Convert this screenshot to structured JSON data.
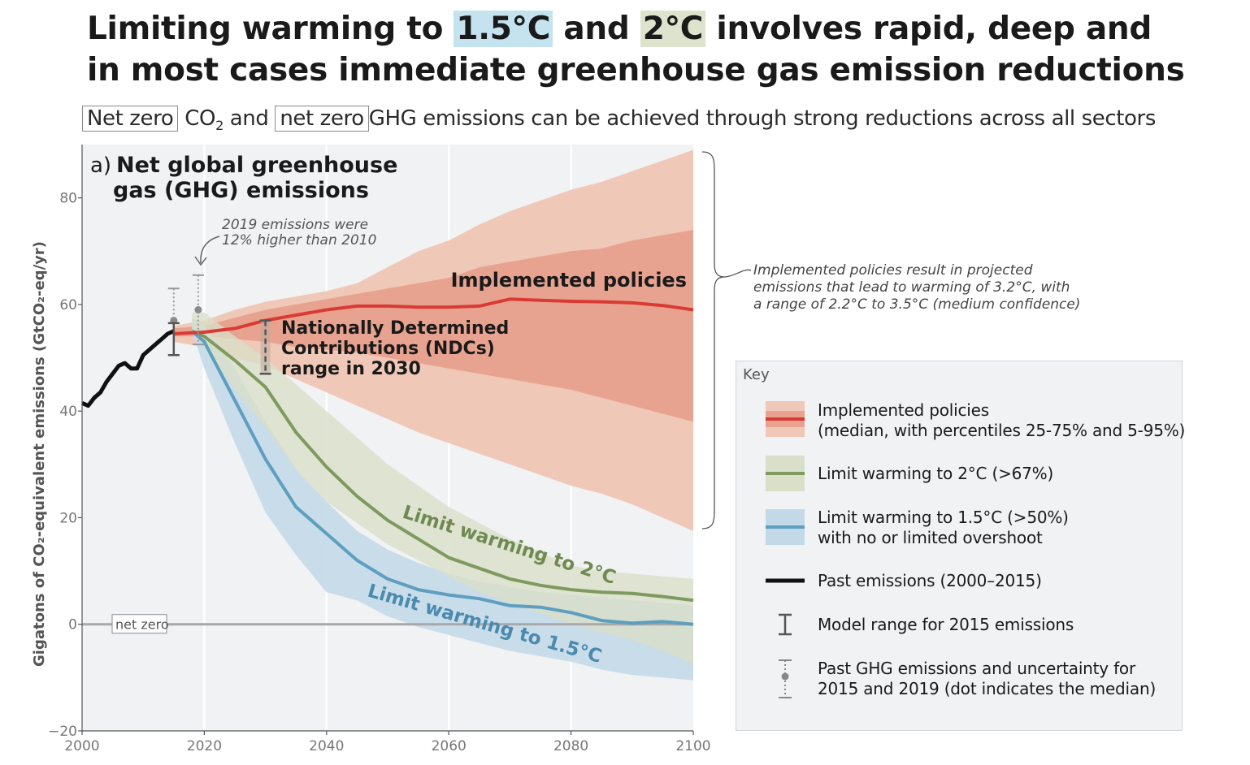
{
  "headline": {
    "part1": "Limiting warming to ",
    "highlight_15": "1.5°C",
    "part2": " and ",
    "highlight_2": "2°C",
    "part3": " involves rapid, deep and",
    "line2": "in most cases immediate greenhouse gas emission reductions"
  },
  "subheadline": {
    "netzero1": "Net zero",
    "co2": "CO",
    "co2_sub": "2",
    "and": "and",
    "netzero2": "net zero",
    "rest": "GHG emissions can be achieved through strong reductions across all sectors"
  },
  "colors": {
    "implemented_outer": "#f0c8b8",
    "implemented_inner": "#e8a390",
    "implemented_median": "#d93b34",
    "two_deg_band": "#d9dfc8",
    "two_deg_line": "#7e9a5e",
    "one_five_band": "#c3d9e8",
    "one_five_line": "#5e9ec0",
    "past": "#111111",
    "plot_bg": "#f0f2f3",
    "netzero_line": "#a8a8a8"
  },
  "chart_data": {
    "type": "area",
    "title_prefix": "a)",
    "title": "Net global greenhouse gas (GHG) emissions",
    "xlabel": "",
    "ylabel": "Gigatons of CO₂-equivalent emissions (GtCO₂-eq/yr)",
    "xlim": [
      2000,
      2100
    ],
    "ylim": [
      -20,
      90
    ],
    "x_ticks": [
      2000,
      2020,
      2040,
      2060,
      2080,
      2100
    ],
    "y_ticks": [
      -20,
      0,
      20,
      40,
      60,
      80
    ],
    "grid": "vertical",
    "netzero_label": "net zero",
    "past_emissions": {
      "name": "Past emissions (2000–2015)",
      "x": [
        2000,
        2001,
        2002,
        2003,
        2004,
        2005,
        2006,
        2007,
        2008,
        2009,
        2010,
        2011,
        2012,
        2013,
        2014,
        2015
      ],
      "y": [
        41.5,
        41,
        42.5,
        43.5,
        45.5,
        47,
        48.5,
        49,
        48,
        48,
        50.5,
        51.5,
        52.5,
        53.5,
        54.5,
        55
      ]
    },
    "implemented_policies": {
      "name": "Implemented policies",
      "x": [
        2015,
        2020,
        2025,
        2030,
        2035,
        2040,
        2045,
        2050,
        2055,
        2060,
        2065,
        2070,
        2075,
        2080,
        2085,
        2090,
        2095,
        2100
      ],
      "median": [
        54.5,
        54.8,
        55.5,
        57,
        58,
        59,
        59.7,
        59.7,
        59.5,
        59.5,
        59.7,
        61,
        60.8,
        60.6,
        60.5,
        60.3,
        59.8,
        59
      ],
      "p25": [
        54,
        54,
        53.5,
        53,
        52,
        51.5,
        51,
        50,
        49,
        48,
        47,
        46,
        45,
        44,
        42.5,
        41,
        39.5,
        38
      ],
      "p75": [
        55.5,
        56,
        57.5,
        59,
        60,
        61,
        62,
        63,
        64,
        65,
        67,
        68,
        69,
        70,
        70.5,
        72,
        73,
        74
      ],
      "p5": [
        53,
        52,
        50,
        48.5,
        46,
        43.5,
        41,
        38.5,
        36,
        34,
        32,
        30,
        28,
        26,
        24.5,
        22.5,
        20,
        17.5
      ],
      "p95": [
        56,
        57,
        59,
        60.5,
        61.5,
        62.5,
        64,
        67,
        70,
        72,
        75,
        77.5,
        79.5,
        81.5,
        83,
        85,
        87,
        89
      ]
    },
    "limit_2c": {
      "name": "Limit warming to 2°C",
      "x": [
        2018,
        2020,
        2025,
        2030,
        2035,
        2040,
        2045,
        2050,
        2055,
        2060,
        2065,
        2070,
        2075,
        2080,
        2085,
        2090,
        2095,
        2100
      ],
      "median": [
        55,
        54,
        49.5,
        44.5,
        36,
        29.5,
        24,
        19.5,
        16,
        12.5,
        10.5,
        8.5,
        7.3,
        6.5,
        6,
        5.8,
        5.2,
        4.5
      ],
      "upper": [
        58.5,
        58.5,
        54,
        50,
        45,
        40,
        35,
        30,
        26,
        22,
        19,
        16,
        13.5,
        11,
        10,
        9.5,
        9,
        8.5
      ],
      "lower": [
        55,
        52,
        44,
        37,
        29,
        23,
        19,
        15,
        12,
        9,
        6,
        4,
        2,
        0,
        -1.5,
        -3,
        -5,
        -7.5
      ]
    },
    "limit_15c": {
      "name": "Limit warming to 1.5°C",
      "x": [
        2018,
        2020,
        2025,
        2030,
        2035,
        2040,
        2045,
        2050,
        2055,
        2060,
        2065,
        2070,
        2075,
        2080,
        2085,
        2090,
        2095,
        2100
      ],
      "median": [
        55,
        53,
        42,
        31,
        22,
        17,
        12,
        8.5,
        6.5,
        5.5,
        4.8,
        3.5,
        3.2,
        2.2,
        0.7,
        0.2,
        0.5,
        0
      ],
      "upper": [
        57.5,
        56,
        48,
        38,
        29,
        23,
        17.5,
        14,
        11.5,
        9.5,
        8,
        7,
        6,
        5.5,
        5,
        4.5,
        4,
        3.5
      ],
      "lower": [
        55,
        48,
        34,
        21,
        13,
        6,
        4.5,
        1.5,
        -0.5,
        -2,
        -3.5,
        -5,
        -6,
        -7,
        -8.5,
        -9.5,
        -10,
        -10.5
      ]
    },
    "model_range_2015": {
      "x": 2015,
      "min": 50.5,
      "max": 56.5
    },
    "past_uncertainty": [
      {
        "x": 2015,
        "min": 50.5,
        "max": 63,
        "median": 57
      },
      {
        "x": 2019,
        "min": 52.5,
        "max": 65.5,
        "median": 59
      }
    ],
    "ndc_range_2030": {
      "x": 2030,
      "min": 47,
      "max": 57
    },
    "annotations": {
      "emissions_2019_line1": "2019 emissions were",
      "emissions_2019_line2": "12% higher than 2010",
      "ndc_line1": "Nationally Determined",
      "ndc_line2": "Contributions (NDCs)",
      "ndc_line3": "range in 2030",
      "implemented_label": "Implemented policies",
      "label_2c": "Limit warming to 2°C",
      "label_15c": "Limit warming to 1.5°C",
      "projection_line1": "Implemented policies result in projected",
      "projection_line2": "emissions that lead to warming of 3.2°C, with",
      "projection_line3": "a range of 2.2°C to 3.5°C (medium confidence)"
    }
  },
  "key": {
    "title": "Key",
    "items": [
      {
        "id": "implemented",
        "line1": "Implemented policies",
        "line2": "(median, with percentiles 25-75% and 5-95%)"
      },
      {
        "id": "two",
        "line1": "Limit warming to 2°C (>67%)",
        "line2": ""
      },
      {
        "id": "onefive",
        "line1": "Limit warming to 1.5°C (>50%)",
        "line2": "with no or limited overshoot"
      },
      {
        "id": "past",
        "line1": "Past emissions (2000–2015)",
        "line2": ""
      },
      {
        "id": "model",
        "line1": "Model range for 2015 emissions",
        "line2": ""
      },
      {
        "id": "uncert",
        "line1": "Past GHG emissions and uncertainty for",
        "line2": "2015 and 2019 (dot indicates the median)"
      }
    ]
  }
}
